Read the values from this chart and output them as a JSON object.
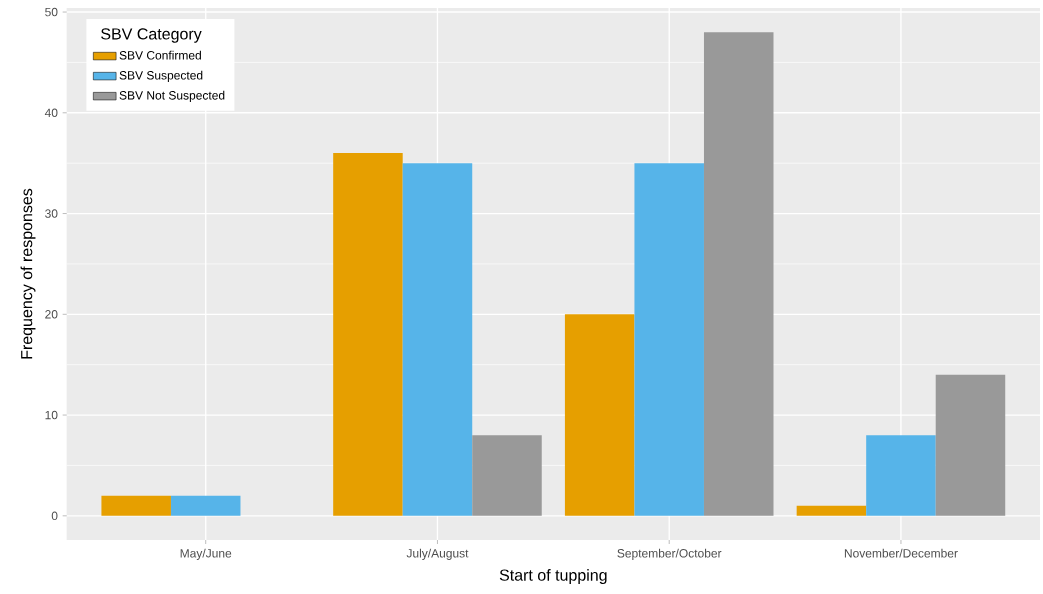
{
  "chart_data": {
    "type": "bar",
    "xlabel": "Start of tupping",
    "ylabel": "Frequency of responses",
    "legend_title": "SBV Category",
    "categories": [
      "May/June",
      "July/August",
      "September/October",
      "November/December"
    ],
    "series": [
      {
        "name": "SBV Confirmed",
        "color": "#e69f00",
        "values": [
          2,
          36,
          20,
          1
        ]
      },
      {
        "name": "SBV Suspected",
        "color": "#56b4e9",
        "values": [
          2,
          35,
          35,
          8
        ]
      },
      {
        "name": "SBV Not Suspected",
        "color": "#999999",
        "values": [
          null,
          8,
          48,
          14
        ]
      }
    ],
    "ylim": [
      -2.4,
      50.4
    ],
    "yticks": [
      0,
      10,
      20,
      30,
      40,
      50
    ],
    "grid": true,
    "legend": "top left"
  }
}
